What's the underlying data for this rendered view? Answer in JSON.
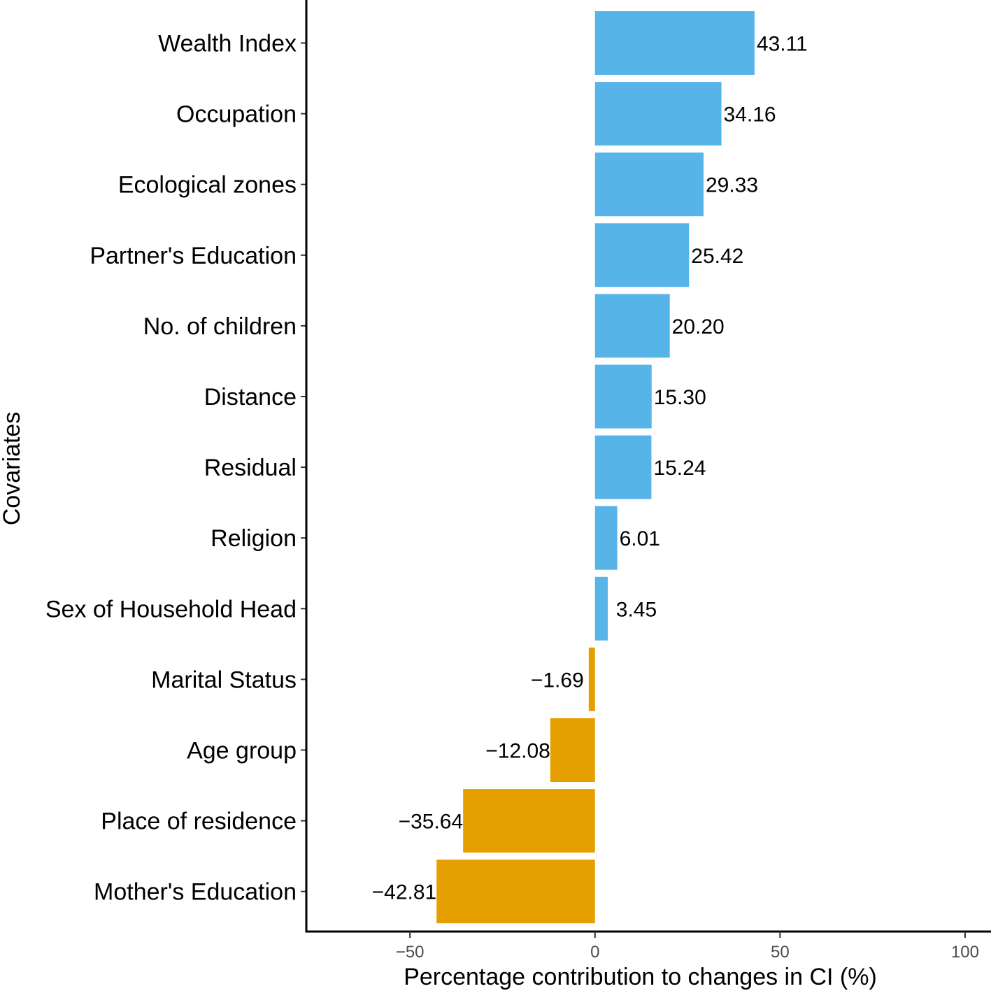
{
  "chart_data": {
    "type": "bar",
    "orientation": "horizontal",
    "title": "",
    "xlabel": "Percentage contribution to changes in CI (%)",
    "ylabel": "Covariates",
    "xlim": [
      -78,
      107
    ],
    "xticks": [
      -50,
      0,
      50,
      100
    ],
    "xtick_labels": [
      "−50",
      "0",
      "50",
      "100"
    ],
    "grid": false,
    "legend": "none",
    "colors": {
      "positive": "#56B4E9",
      "negative": "#E69F00"
    },
    "categories": [
      "Wealth Index",
      "Occupation",
      "Ecological zones",
      "Partner's Education",
      "No. of children",
      "Distance",
      "Residual",
      "Religion",
      "Sex of Household Head",
      "Marital Status",
      "Age group",
      "Place of residence",
      "Mother's Education"
    ],
    "values": [
      43.11,
      34.16,
      29.33,
      25.42,
      20.2,
      15.3,
      15.24,
      6.01,
      3.45,
      -1.69,
      -12.08,
      -35.64,
      -42.81
    ],
    "data_labels": [
      "43.11",
      "34.16",
      "29.33",
      "25.42",
      "20.20",
      "15.30",
      "15.24",
      "6.01",
      "3.45",
      "−1.69",
      "−12.08",
      "−35.64",
      "−42.81"
    ]
  }
}
